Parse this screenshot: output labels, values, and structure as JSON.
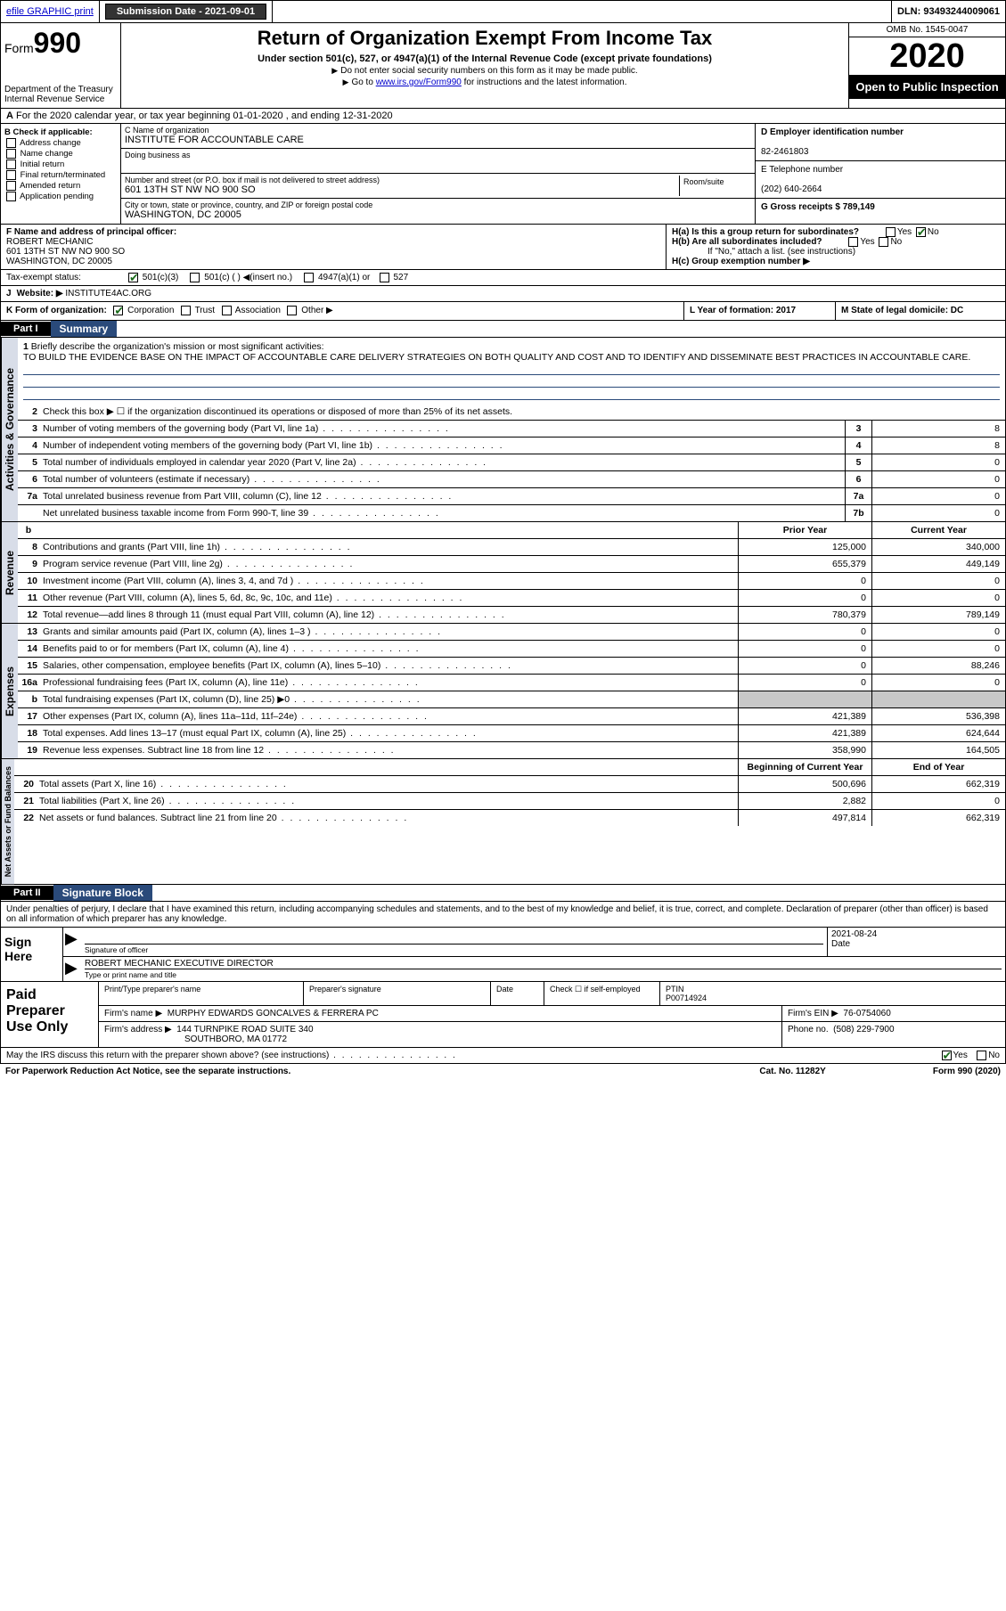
{
  "topbar": {
    "efile": "efile GRAPHIC print",
    "submission_label": "Submission Date - 2021-09-01",
    "dln_label": "DLN: 93493244009061"
  },
  "header": {
    "form_word": "Form",
    "form_num": "990",
    "dept": "Department of the Treasury",
    "irs": "Internal Revenue Service",
    "title": "Return of Organization Exempt From Income Tax",
    "sub": "Under section 501(c), 527, or 4947(a)(1) of the Internal Revenue Code (except private foundations)",
    "note1": "Do not enter social security numbers on this form as it may be made public.",
    "note2_pre": "Go to ",
    "note2_link": "www.irs.gov/Form990",
    "note2_post": " for instructions and the latest information.",
    "omb": "OMB No. 1545-0047",
    "year": "2020",
    "open": "Open to Public Inspection"
  },
  "line_a": "For the 2020 calendar year, or tax year beginning 01-01-2020   , and ending 12-31-2020",
  "box_b": {
    "hdr": "B Check if applicable:",
    "opts": [
      "Address change",
      "Name change",
      "Initial return",
      "Final return/terminated",
      "Amended return",
      "Application pending"
    ]
  },
  "box_c": {
    "name_lbl": "C Name of organization",
    "name": "INSTITUTE FOR ACCOUNTABLE CARE",
    "dba_lbl": "Doing business as",
    "addr_lbl": "Number and street (or P.O. box if mail is not delivered to street address)",
    "room_lbl": "Room/suite",
    "addr": "601 13TH ST NW NO 900 SO",
    "city_lbl": "City or town, state or province, country, and ZIP or foreign postal code",
    "city": "WASHINGTON, DC  20005"
  },
  "box_d": {
    "lbl": "D Employer identification number",
    "val": "82-2461803"
  },
  "box_e": {
    "lbl": "E Telephone number",
    "val": "(202) 640-2664"
  },
  "box_g": {
    "lbl": "G Gross receipts $ 789,149"
  },
  "box_f": {
    "lbl": "F  Name and address of principal officer:",
    "name": "ROBERT MECHANIC",
    "addr1": "601 13TH ST NW NO 900 SO",
    "addr2": "WASHINGTON, DC  20005"
  },
  "box_h": {
    "a": "H(a)  Is this a group return for subordinates?",
    "b": "H(b)  Are all subordinates included?",
    "b_note": "If \"No,\" attach a list. (see instructions)",
    "c": "H(c)  Group exemption number ▶"
  },
  "yes": "Yes",
  "no": "No",
  "tax_exempt": {
    "lbl": "Tax-exempt status:",
    "o1": "501(c)(3)",
    "o2": "501(c) (  ) ◀(insert no.)",
    "o3": "4947(a)(1) or",
    "o4": "527"
  },
  "box_j": {
    "lbl": "J",
    "txt": "Website: ▶",
    "val": "INSTITUTE4AC.ORG"
  },
  "box_k": {
    "lbl": "K Form of organization:",
    "o1": "Corporation",
    "o2": "Trust",
    "o3": "Association",
    "o4": "Other ▶"
  },
  "box_l": {
    "lbl": "L Year of formation: 2017"
  },
  "box_m": {
    "lbl": "M State of legal domicile: DC"
  },
  "part1": {
    "num": "Part I",
    "title": "Summary",
    "l1_lbl": "1",
    "l1": "Briefly describe the organization's mission or most significant activities:",
    "mission": "TO BUILD THE EVIDENCE BASE ON THE IMPACT OF ACCOUNTABLE CARE DELIVERY STRATEGIES ON BOTH QUALITY AND COST AND TO IDENTIFY AND DISSEMINATE BEST PRACTICES IN ACCOUNTABLE CARE.",
    "l2": "Check this box ▶ ☐  if the organization discontinued its operations or disposed of more than 25% of its net assets.",
    "prior": "Prior Year",
    "current": "Current Year",
    "begin": "Beginning of Current Year",
    "end": "End of Year"
  },
  "gov_lines": [
    {
      "n": "3",
      "t": "Number of voting members of the governing body (Part VI, line 1a)",
      "b": "3",
      "v": "8"
    },
    {
      "n": "4",
      "t": "Number of independent voting members of the governing body (Part VI, line 1b)",
      "b": "4",
      "v": "8"
    },
    {
      "n": "5",
      "t": "Total number of individuals employed in calendar year 2020 (Part V, line 2a)",
      "b": "5",
      "v": "0"
    },
    {
      "n": "6",
      "t": "Total number of volunteers (estimate if necessary)",
      "b": "6",
      "v": "0"
    },
    {
      "n": "7a",
      "t": "Total unrelated business revenue from Part VIII, column (C), line 12",
      "b": "7a",
      "v": "0"
    },
    {
      "n": "",
      "t": "Net unrelated business taxable income from Form 990-T, line 39",
      "b": "7b",
      "v": "0"
    }
  ],
  "rev_lines": [
    {
      "n": "8",
      "t": "Contributions and grants (Part VIII, line 1h)",
      "p": "125,000",
      "c": "340,000"
    },
    {
      "n": "9",
      "t": "Program service revenue (Part VIII, line 2g)",
      "p": "655,379",
      "c": "449,149"
    },
    {
      "n": "10",
      "t": "Investment income (Part VIII, column (A), lines 3, 4, and 7d )",
      "p": "0",
      "c": "0"
    },
    {
      "n": "11",
      "t": "Other revenue (Part VIII, column (A), lines 5, 6d, 8c, 9c, 10c, and 11e)",
      "p": "0",
      "c": "0"
    },
    {
      "n": "12",
      "t": "Total revenue—add lines 8 through 11 (must equal Part VIII, column (A), line 12)",
      "p": "780,379",
      "c": "789,149"
    }
  ],
  "exp_lines": [
    {
      "n": "13",
      "t": "Grants and similar amounts paid (Part IX, column (A), lines 1–3 )",
      "p": "0",
      "c": "0"
    },
    {
      "n": "14",
      "t": "Benefits paid to or for members (Part IX, column (A), line 4)",
      "p": "0",
      "c": "0"
    },
    {
      "n": "15",
      "t": "Salaries, other compensation, employee benefits (Part IX, column (A), lines 5–10)",
      "p": "0",
      "c": "88,246"
    },
    {
      "n": "16a",
      "t": "Professional fundraising fees (Part IX, column (A), line 11e)",
      "p": "0",
      "c": "0"
    },
    {
      "n": "b",
      "t": "Total fundraising expenses (Part IX, column (D), line 25) ▶0",
      "p": "",
      "c": "",
      "gray": true
    },
    {
      "n": "17",
      "t": "Other expenses (Part IX, column (A), lines 11a–11d, 11f–24e)",
      "p": "421,389",
      "c": "536,398"
    },
    {
      "n": "18",
      "t": "Total expenses. Add lines 13–17 (must equal Part IX, column (A), line 25)",
      "p": "421,389",
      "c": "624,644"
    },
    {
      "n": "19",
      "t": "Revenue less expenses. Subtract line 18 from line 12",
      "p": "358,990",
      "c": "164,505"
    }
  ],
  "net_lines": [
    {
      "n": "20",
      "t": "Total assets (Part X, line 16)",
      "p": "500,696",
      "c": "662,319"
    },
    {
      "n": "21",
      "t": "Total liabilities (Part X, line 26)",
      "p": "2,882",
      "c": "0"
    },
    {
      "n": "22",
      "t": "Net assets or fund balances. Subtract line 21 from line 20",
      "p": "497,814",
      "c": "662,319"
    }
  ],
  "vtabs": {
    "gov": "Activities & Governance",
    "rev": "Revenue",
    "exp": "Expenses",
    "net": "Net Assets or Fund Balances"
  },
  "part2": {
    "num": "Part II",
    "title": "Signature Block",
    "decl": "Under penalties of perjury, I declare that I have examined this return, including accompanying schedules and statements, and to the best of my knowledge and belief, it is true, correct, and complete. Declaration of preparer (other than officer) is based on all information of which preparer has any knowledge.",
    "sign_here": "Sign Here",
    "sig_officer": "Signature of officer",
    "date": "Date",
    "sig_date": "2021-08-24",
    "name_title": "ROBERT MECHANIC  EXECUTIVE DIRECTOR",
    "type_name": "Type or print name and title",
    "paid": "Paid Preparer Use Only",
    "pt_name_lbl": "Print/Type preparer's name",
    "prep_sig_lbl": "Preparer's signature",
    "date_lbl": "Date",
    "check_self": "Check ☐ if self-employed",
    "ptin_lbl": "PTIN",
    "ptin": "P00714924",
    "firm_name_lbl": "Firm's name   ▶",
    "firm_name": "MURPHY EDWARDS GONCALVES & FERRERA PC",
    "firm_ein_lbl": "Firm's EIN ▶",
    "firm_ein": "76-0754060",
    "firm_addr_lbl": "Firm's address ▶",
    "firm_addr1": "144 TURNPIKE ROAD SUITE 340",
    "firm_addr2": "SOUTHBORO, MA  01772",
    "phone_lbl": "Phone no.",
    "phone": "(508) 229-7900",
    "discuss": "May the IRS discuss this return with the preparer shown above? (see instructions)"
  },
  "footer": {
    "pra": "For Paperwork Reduction Act Notice, see the separate instructions.",
    "cat": "Cat. No. 11282Y",
    "form": "Form 990 (2020)"
  },
  "colors": {
    "link": "#0000cc",
    "partbg": "#2a4a7a",
    "tabbg": "#d8dde8",
    "gray": "#c8c8c8",
    "check": "#1a6b1a"
  }
}
